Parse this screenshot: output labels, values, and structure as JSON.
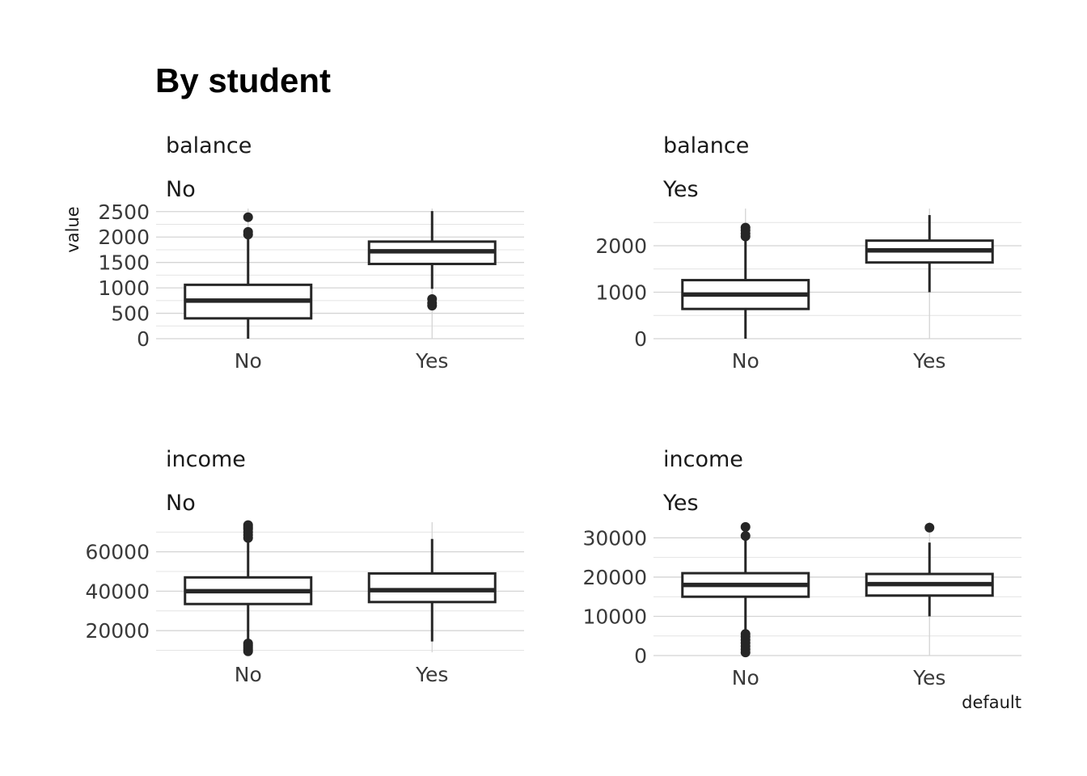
{
  "title": "By student",
  "x_axis_title": "default",
  "y_axis_title": "value",
  "chart_data": [
    {
      "type": "boxplot",
      "variable": "balance",
      "student": "No",
      "categories": [
        "No",
        "Yes"
      ],
      "ylim": [
        0,
        2560
      ],
      "yticks": [
        0,
        500,
        1000,
        1500,
        2000,
        2500
      ],
      "ytick_labels": [
        "0",
        "500",
        "1000",
        "1500",
        "2000",
        "2500"
      ],
      "boxes": [
        {
          "category": "No",
          "min": 0,
          "q1": 400,
          "median": 750,
          "q3": 1060,
          "max": 2000,
          "outliers": [
            2050,
            2100,
            2390
          ]
        },
        {
          "category": "Yes",
          "min": 980,
          "q1": 1470,
          "median": 1720,
          "q3": 1910,
          "max": 2510,
          "outliers": [
            650,
            700,
            780
          ]
        }
      ]
    },
    {
      "type": "boxplot",
      "variable": "balance",
      "student": "Yes",
      "categories": [
        "No",
        "Yes"
      ],
      "ylim": [
        0,
        2800
      ],
      "yticks": [
        0,
        1000,
        2000
      ],
      "ytick_labels": [
        "0",
        "1000",
        "2000"
      ],
      "boxes": [
        {
          "category": "No",
          "min": 0,
          "q1": 640,
          "median": 950,
          "q3": 1260,
          "max": 2150,
          "outliers": [
            2200,
            2260,
            2330,
            2390
          ]
        },
        {
          "category": "Yes",
          "min": 1000,
          "q1": 1640,
          "median": 1900,
          "q3": 2110,
          "max": 2660,
          "outliers": []
        }
      ]
    },
    {
      "type": "boxplot",
      "variable": "income",
      "student": "No",
      "categories": [
        "No",
        "Yes"
      ],
      "ylim": [
        9000,
        75000
      ],
      "yticks": [
        20000,
        40000,
        60000
      ],
      "ytick_labels": [
        "20000",
        "40000",
        "60000"
      ],
      "boxes": [
        {
          "category": "No",
          "min": 14500,
          "q1": 33500,
          "median": 40000,
          "q3": 47000,
          "max": 66000,
          "outliers": [
            9500,
            10500,
            11500,
            12500,
            13500,
            67000,
            68500,
            70000,
            71500,
            72500,
            73500
          ]
        },
        {
          "category": "Yes",
          "min": 14500,
          "q1": 34500,
          "median": 40500,
          "q3": 49000,
          "max": 66500,
          "outliers": []
        }
      ]
    },
    {
      "type": "boxplot",
      "variable": "income",
      "student": "Yes",
      "categories": [
        "No",
        "Yes"
      ],
      "ylim": [
        0,
        34000
      ],
      "yticks": [
        0,
        10000,
        20000,
        30000
      ],
      "ytick_labels": [
        "0",
        "10000",
        "20000",
        "30000"
      ],
      "boxes": [
        {
          "category": "No",
          "min": 6000,
          "q1": 15000,
          "median": 18000,
          "q3": 21000,
          "max": 29500,
          "outliers": [
            800,
            1600,
            2400,
            3200,
            4000,
            4800,
            5500,
            30500,
            32800
          ]
        },
        {
          "category": "Yes",
          "min": 10000,
          "q1": 15300,
          "median": 18200,
          "q3": 20800,
          "max": 28800,
          "outliers": [
            32600
          ]
        }
      ]
    }
  ]
}
